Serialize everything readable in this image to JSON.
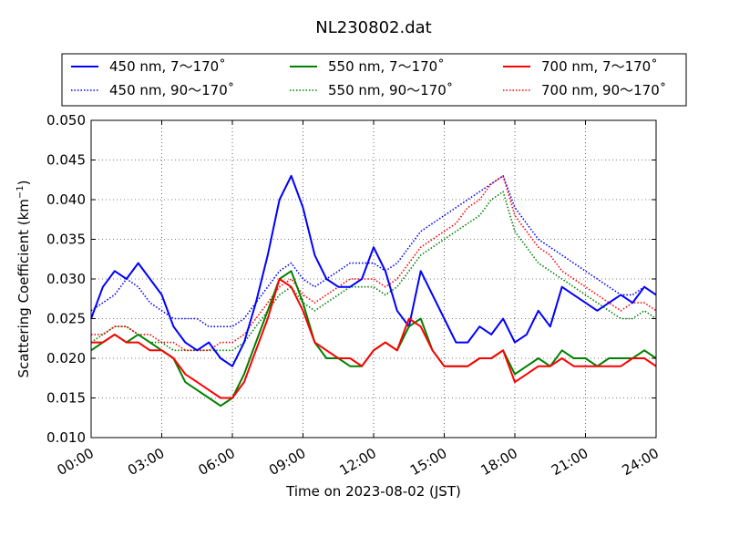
{
  "chart_data": {
    "type": "line",
    "title": "NL230802.dat",
    "xlabel": "Time on 2023-08-02 (JST)",
    "ylabel_main": "Scattering Coefficient (km",
    "ylabel_sup": "−1",
    "ylabel_close": ")",
    "xlim_hours": [
      0,
      24
    ],
    "ylim": [
      0.01,
      0.05
    ],
    "x_ticks": [
      "00:00",
      "03:00",
      "06:00",
      "09:00",
      "12:00",
      "15:00",
      "18:00",
      "21:00",
      "24:00"
    ],
    "y_ticks": [
      "0.010",
      "0.015",
      "0.020",
      "0.025",
      "0.030",
      "0.035",
      "0.040",
      "0.045",
      "0.050"
    ],
    "grid": true,
    "legend_position": "top",
    "series": [
      {
        "name": "450 nm, 7～170˚",
        "color": "#0000ff",
        "style": "solid",
        "x": [
          0,
          0.5,
          1,
          1.5,
          2,
          2.5,
          3,
          3.5,
          4,
          4.5,
          5,
          5.5,
          6,
          6.5,
          7,
          7.5,
          8,
          8.5,
          9,
          9.5,
          10,
          10.5,
          11,
          11.5,
          12,
          12.5,
          13,
          13.5,
          14,
          14.5,
          15,
          15.5,
          16,
          16.5,
          17,
          17.5,
          18,
          18.5,
          19,
          19.5,
          20,
          20.5,
          21,
          21.5,
          22,
          22.5,
          23,
          23.5,
          24
        ],
        "values": [
          0.025,
          0.029,
          0.031,
          0.03,
          0.032,
          0.03,
          0.028,
          0.024,
          0.022,
          0.021,
          0.022,
          0.02,
          0.019,
          0.022,
          0.027,
          0.033,
          0.04,
          0.043,
          0.039,
          0.033,
          0.03,
          0.029,
          0.029,
          0.03,
          0.034,
          0.031,
          0.026,
          0.024,
          0.031,
          0.028,
          0.025,
          0.022,
          0.022,
          0.024,
          0.023,
          0.025,
          0.022,
          0.023,
          0.026,
          0.024,
          0.029,
          0.028,
          0.027,
          0.026,
          0.027,
          0.028,
          0.027,
          0.029,
          0.028
        ]
      },
      {
        "name": "450 nm, 90～170˚",
        "color": "#0000ff",
        "style": "dotted",
        "x": [
          0,
          0.5,
          1,
          1.5,
          2,
          2.5,
          3,
          3.5,
          4,
          4.5,
          5,
          5.5,
          6,
          6.5,
          7,
          7.5,
          8,
          8.5,
          9,
          9.5,
          10,
          10.5,
          11,
          11.5,
          12,
          12.5,
          13,
          13.5,
          14,
          14.5,
          15,
          15.5,
          16,
          16.5,
          17,
          17.5,
          18,
          18.5,
          19,
          19.5,
          20,
          20.5,
          21,
          21.5,
          22,
          22.5,
          23,
          23.5,
          24
        ],
        "values": [
          0.026,
          0.027,
          0.028,
          0.03,
          0.029,
          0.027,
          0.026,
          0.025,
          0.025,
          0.025,
          0.024,
          0.024,
          0.024,
          0.025,
          0.027,
          0.029,
          0.031,
          0.032,
          0.03,
          0.029,
          0.03,
          0.031,
          0.032,
          0.032,
          0.032,
          0.031,
          0.032,
          0.034,
          0.036,
          0.037,
          0.038,
          0.039,
          0.04,
          0.041,
          0.042,
          0.043,
          0.039,
          0.037,
          0.035,
          0.034,
          0.033,
          0.032,
          0.031,
          0.03,
          0.029,
          0.028,
          0.028,
          0.029,
          0.028
        ]
      },
      {
        "name": "550 nm, 7～170˚",
        "color": "#008000",
        "style": "solid",
        "x": [
          0,
          0.5,
          1,
          1.5,
          2,
          2.5,
          3,
          3.5,
          4,
          4.5,
          5,
          5.5,
          6,
          6.5,
          7,
          7.5,
          8,
          8.5,
          9,
          9.5,
          10,
          10.5,
          11,
          11.5,
          12,
          12.5,
          13,
          13.5,
          14,
          14.5,
          15,
          15.5,
          16,
          16.5,
          17,
          17.5,
          18,
          18.5,
          19,
          19.5,
          20,
          20.5,
          21,
          21.5,
          22,
          22.5,
          23,
          23.5,
          24
        ],
        "values": [
          0.021,
          0.022,
          0.023,
          0.022,
          0.023,
          0.022,
          0.021,
          0.02,
          0.017,
          0.016,
          0.015,
          0.014,
          0.015,
          0.018,
          0.022,
          0.026,
          0.03,
          0.031,
          0.027,
          0.022,
          0.02,
          0.02,
          0.019,
          0.019,
          0.021,
          0.022,
          0.021,
          0.024,
          0.025,
          0.021,
          0.019,
          0.019,
          0.019,
          0.02,
          0.02,
          0.021,
          0.018,
          0.019,
          0.02,
          0.019,
          0.021,
          0.02,
          0.02,
          0.019,
          0.02,
          0.02,
          0.02,
          0.021,
          0.02
        ]
      },
      {
        "name": "550 nm, 90～170˚",
        "color": "#008000",
        "style": "dotted",
        "x": [
          0,
          0.5,
          1,
          1.5,
          2,
          2.5,
          3,
          3.5,
          4,
          4.5,
          5,
          5.5,
          6,
          6.5,
          7,
          7.5,
          8,
          8.5,
          9,
          9.5,
          10,
          10.5,
          11,
          11.5,
          12,
          12.5,
          13,
          13.5,
          14,
          14.5,
          15,
          15.5,
          16,
          16.5,
          17,
          17.5,
          18,
          18.5,
          19,
          19.5,
          20,
          20.5,
          21,
          21.5,
          22,
          22.5,
          23,
          23.5,
          24
        ],
        "values": [
          0.022,
          0.023,
          0.024,
          0.024,
          0.023,
          0.022,
          0.022,
          0.021,
          0.021,
          0.021,
          0.021,
          0.021,
          0.021,
          0.022,
          0.024,
          0.026,
          0.028,
          0.029,
          0.027,
          0.026,
          0.027,
          0.028,
          0.029,
          0.029,
          0.029,
          0.028,
          0.029,
          0.031,
          0.033,
          0.034,
          0.035,
          0.036,
          0.037,
          0.038,
          0.04,
          0.041,
          0.036,
          0.034,
          0.032,
          0.031,
          0.03,
          0.029,
          0.028,
          0.027,
          0.026,
          0.025,
          0.025,
          0.026,
          0.025
        ]
      },
      {
        "name": "700 nm, 7～170˚",
        "color": "#ff0000",
        "style": "solid",
        "x": [
          0,
          0.5,
          1,
          1.5,
          2,
          2.5,
          3,
          3.5,
          4,
          4.5,
          5,
          5.5,
          6,
          6.5,
          7,
          7.5,
          8,
          8.5,
          9,
          9.5,
          10,
          10.5,
          11,
          11.5,
          12,
          12.5,
          13,
          13.5,
          14,
          14.5,
          15,
          15.5,
          16,
          16.5,
          17,
          17.5,
          18,
          18.5,
          19,
          19.5,
          20,
          20.5,
          21,
          21.5,
          22,
          22.5,
          23,
          23.5,
          24
        ],
        "values": [
          0.022,
          0.022,
          0.023,
          0.022,
          0.022,
          0.021,
          0.021,
          0.02,
          0.018,
          0.017,
          0.016,
          0.015,
          0.015,
          0.017,
          0.021,
          0.025,
          0.03,
          0.029,
          0.026,
          0.022,
          0.021,
          0.02,
          0.02,
          0.019,
          0.021,
          0.022,
          0.021,
          0.025,
          0.024,
          0.021,
          0.019,
          0.019,
          0.019,
          0.02,
          0.02,
          0.021,
          0.017,
          0.018,
          0.019,
          0.019,
          0.02,
          0.019,
          0.019,
          0.019,
          0.019,
          0.019,
          0.02,
          0.02,
          0.019
        ]
      },
      {
        "name": "700 nm, 90～170˚",
        "color": "#ff0000",
        "style": "dotted",
        "x": [
          0,
          0.5,
          1,
          1.5,
          2,
          2.5,
          3,
          3.5,
          4,
          4.5,
          5,
          5.5,
          6,
          6.5,
          7,
          7.5,
          8,
          8.5,
          9,
          9.5,
          10,
          10.5,
          11,
          11.5,
          12,
          12.5,
          13,
          13.5,
          14,
          14.5,
          15,
          15.5,
          16,
          16.5,
          17,
          17.5,
          18,
          18.5,
          19,
          19.5,
          20,
          20.5,
          21,
          21.5,
          22,
          22.5,
          23,
          23.5,
          24
        ],
        "values": [
          0.023,
          0.023,
          0.024,
          0.024,
          0.023,
          0.023,
          0.022,
          0.022,
          0.021,
          0.021,
          0.021,
          0.022,
          0.022,
          0.023,
          0.025,
          0.027,
          0.029,
          0.03,
          0.028,
          0.027,
          0.028,
          0.029,
          0.03,
          0.03,
          0.03,
          0.029,
          0.03,
          0.032,
          0.034,
          0.035,
          0.036,
          0.037,
          0.039,
          0.04,
          0.042,
          0.043,
          0.038,
          0.036,
          0.034,
          0.033,
          0.031,
          0.03,
          0.029,
          0.028,
          0.027,
          0.026,
          0.027,
          0.027,
          0.026
        ]
      }
    ]
  }
}
